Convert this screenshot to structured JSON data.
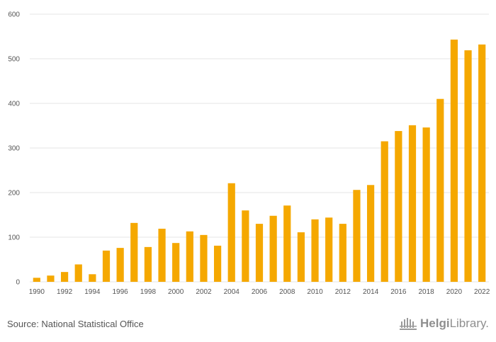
{
  "chart_data": {
    "type": "bar",
    "categories": [
      "1990",
      "1991",
      "1992",
      "1993",
      "1994",
      "1995",
      "1996",
      "1997",
      "1998",
      "1999",
      "2000",
      "2001",
      "2002",
      "2003",
      "2004",
      "2005",
      "2006",
      "2007",
      "2008",
      "2009",
      "2010",
      "2011",
      "2012",
      "2013",
      "2014",
      "2015",
      "2016",
      "2017",
      "2018",
      "2019",
      "2020",
      "2021",
      "2022"
    ],
    "x_tick_labels": [
      "1990",
      "1992",
      "1994",
      "1996",
      "1998",
      "2000",
      "2002",
      "2004",
      "2006",
      "2008",
      "2010",
      "2012",
      "2014",
      "2016",
      "2018",
      "2020",
      "2022"
    ],
    "values": [
      9,
      14,
      22,
      39,
      17,
      70,
      76,
      132,
      78,
      119,
      87,
      113,
      105,
      81,
      221,
      160,
      130,
      148,
      171,
      111,
      140,
      144,
      130,
      206,
      217,
      315,
      338,
      351,
      346,
      410,
      543,
      519,
      532
    ],
    "title": "",
    "xlabel": "",
    "ylabel": "",
    "ylim": [
      0,
      600
    ],
    "y_ticks": [
      0,
      100,
      200,
      300,
      400,
      500,
      600
    ],
    "grid": true,
    "legend": "none",
    "bar_color": "#f5a800"
  },
  "footer": {
    "source": "Source: National Statistical Office",
    "brand_part1": "Helgi",
    "brand_part2": "Library."
  },
  "colors": {
    "grid": "#e6e6e6",
    "axis_text": "#555555",
    "brand": "#8f8f8f"
  }
}
